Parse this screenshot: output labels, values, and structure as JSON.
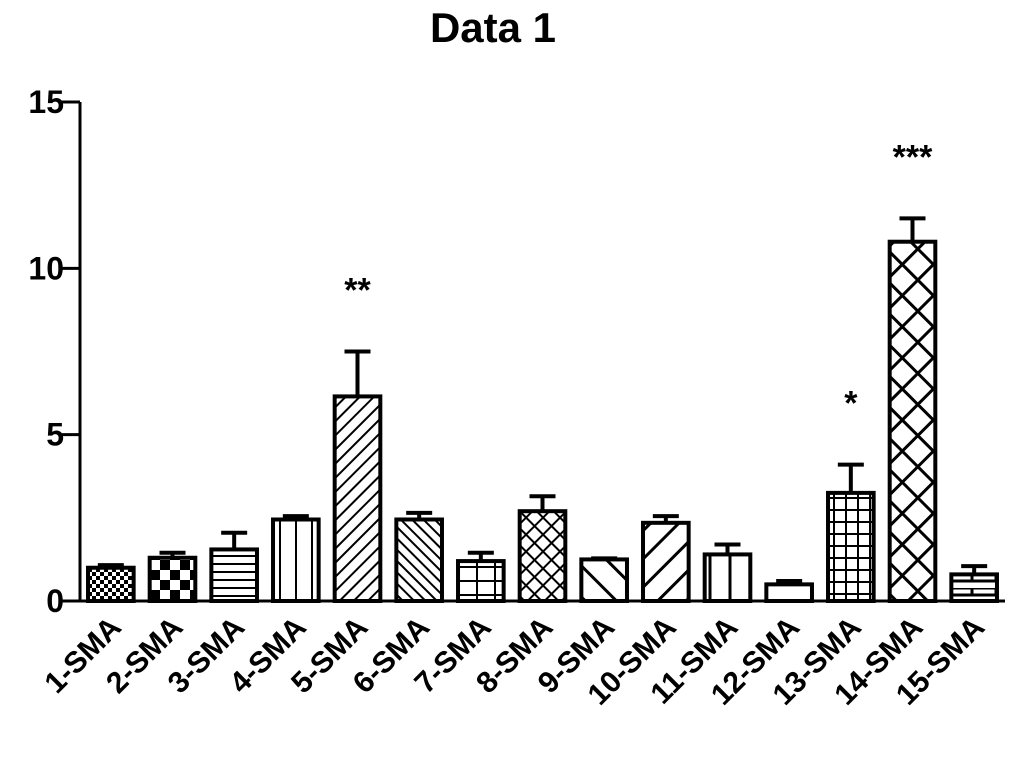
{
  "chart_data": {
    "type": "bar",
    "title": "Data 1",
    "categories": [
      "1-SMA",
      "2-SMA",
      "3-SMA",
      "4-SMA",
      "5-SMA",
      "6-SMA",
      "7-SMA",
      "8-SMA",
      "9-SMA",
      "10-SMA",
      "11-SMA",
      "12-SMA",
      "13-SMA",
      "14-SMA",
      "15-SMA"
    ],
    "values": [
      1.0,
      1.3,
      1.55,
      2.45,
      6.15,
      2.45,
      1.2,
      2.7,
      1.25,
      2.35,
      1.4,
      0.5,
      3.25,
      10.8,
      0.8
    ],
    "errors": [
      0.08,
      0.15,
      0.5,
      0.1,
      1.35,
      0.2,
      0.25,
      0.45,
      0.03,
      0.2,
      0.3,
      0.1,
      0.85,
      0.7,
      0.25
    ],
    "color": "#000000",
    "ylim": [
      0,
      15
    ],
    "yticks": [
      0,
      5,
      10,
      15
    ],
    "annotations": [
      {
        "text": "**",
        "category": "5-SMA"
      },
      {
        "text": "*",
        "category": "13-SMA"
      },
      {
        "text": "***",
        "category": "14-SMA"
      }
    ]
  }
}
